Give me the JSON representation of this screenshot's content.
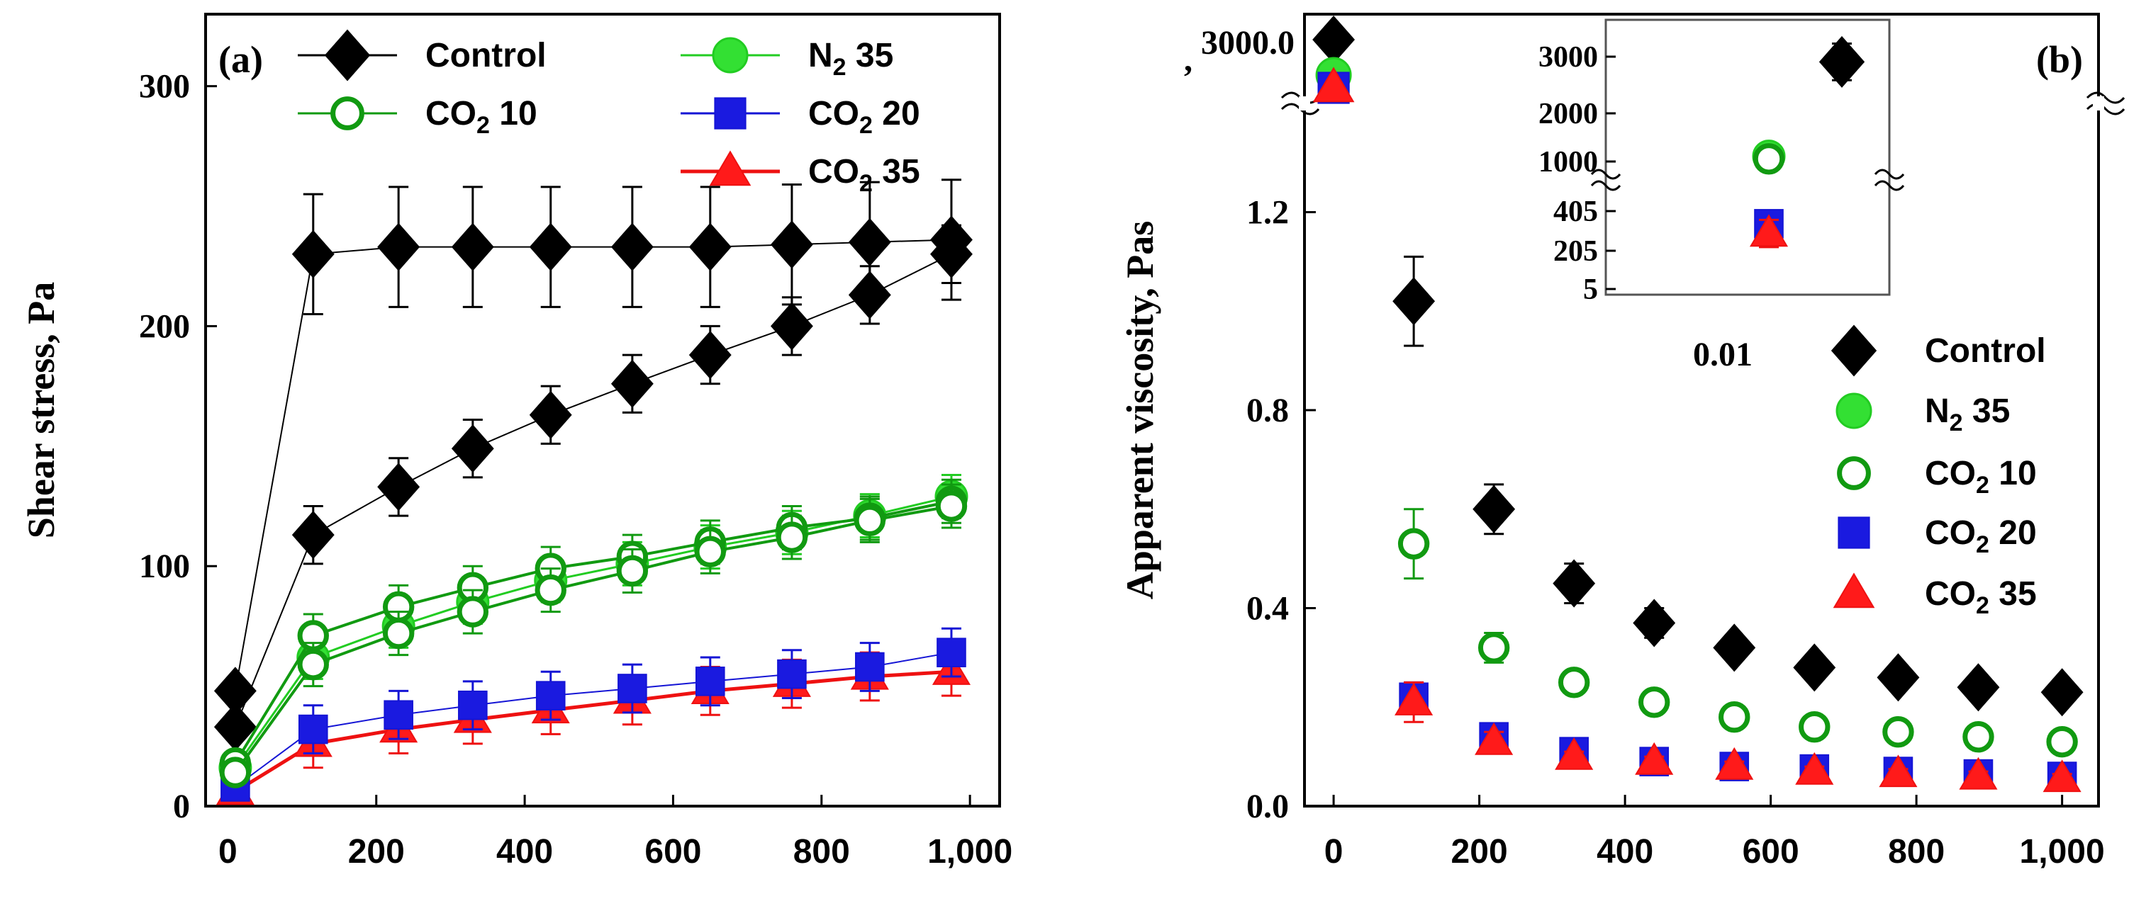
{
  "chart_data": [
    {
      "panel": "(a)",
      "type": "line",
      "xlabel": "",
      "ylabel": "Shear stress, Pa",
      "xlim": [
        -30,
        1040
      ],
      "ylim": [
        0,
        330
      ],
      "xticks": [
        0,
        200,
        400,
        600,
        800,
        1000
      ],
      "xtick_labels": [
        "0",
        "200",
        "400",
        "600",
        "800",
        "1,000"
      ],
      "yticks": [
        0,
        100,
        200,
        300
      ],
      "ytick_labels": [
        "0",
        "100",
        "200",
        "300"
      ],
      "grid": false,
      "legend": {
        "position": "top",
        "entries": [
          {
            "key": "control",
            "sym": "diamond",
            "color": "#000000",
            "fill": "#000000",
            "label": "Control"
          },
          {
            "key": "co2_10",
            "sym": "circle-open",
            "color": "#119a11",
            "fill": "#ffffff",
            "label": "CO",
            "sub": "2",
            "label_rest": " 10"
          },
          {
            "key": "n2_35",
            "sym": "circle",
            "color": "#22cc22",
            "fill": "#33e033",
            "label": "N",
            "sub": "2",
            "label_rest": " 35"
          },
          {
            "key": "co2_20",
            "sym": "square",
            "color": "#1515d5",
            "fill": "#1a1ae0",
            "label": "CO",
            "sub": "2",
            "label_rest": " 20"
          },
          {
            "key": "co2_35",
            "sym": "triangle",
            "color": "#ee1111",
            "fill": "#ff1a1a",
            "label": "CO",
            "sub": "2",
            "label_rest": " 35"
          }
        ]
      },
      "x": [
        10,
        115,
        230,
        330,
        435,
        545,
        650,
        760,
        865,
        975
      ],
      "series": [
        {
          "name": "Control (up)",
          "key": "control",
          "sym": "diamond",
          "color": "#000000",
          "fill": "#000000",
          "values": [
            48,
            230,
            233,
            233,
            233,
            233,
            233,
            234,
            235,
            236
          ],
          "err": 25
        },
        {
          "name": "Control (down)",
          "key": "control",
          "sym": "diamond",
          "color": "#000000",
          "fill": "#000000",
          "values": [
            33,
            113,
            133,
            149,
            163,
            176,
            188,
            200,
            213,
            230
          ],
          "err": 12
        },
        {
          "name": "CO2 10 (up)",
          "key": "co2_10",
          "sym": "circle-open",
          "color": "#119a11",
          "fill": "#ffffff",
          "values": [
            18,
            71,
            83,
            91,
            99,
            104,
            110,
            116,
            120,
            127
          ],
          "err": 9
        },
        {
          "name": "CO2 10 (down)",
          "key": "co2_10",
          "sym": "circle-open",
          "color": "#119a11",
          "fill": "#ffffff",
          "values": [
            14,
            59,
            72,
            81,
            90,
            98,
            106,
            112,
            119,
            125
          ],
          "err": 9
        },
        {
          "name": "N2 35",
          "key": "n2_35",
          "sym": "circle",
          "color": "#22cc22",
          "fill": "#33e033",
          "values": [
            16,
            62,
            75,
            85,
            94,
            101,
            108,
            114,
            121,
            129
          ],
          "err": 9
        },
        {
          "name": "CO2 20",
          "key": "co2_20",
          "sym": "square",
          "color": "#1515d5",
          "fill": "#1a1ae0",
          "values": [
            8,
            32,
            38,
            42,
            46,
            49,
            52,
            55,
            58,
            64
          ],
          "err": 10
        },
        {
          "name": "CO2 35",
          "key": "co2_35",
          "sym": "triangle",
          "color": "#ee1111",
          "fill": "#ff1a1a",
          "values": [
            6,
            26,
            32,
            36,
            40,
            44,
            48,
            51,
            54,
            56
          ],
          "err": 10
        }
      ]
    },
    {
      "panel": "(b)",
      "type": "scatter",
      "xlabel": "",
      "ylabel": "Apparent viscosity, Pas",
      "xlim": [
        -40,
        1050
      ],
      "ylim": [
        0,
        1.6
      ],
      "xticks": [
        0,
        200,
        400,
        600,
        800,
        1000
      ],
      "xtick_labels": [
        "0",
        "200",
        "400",
        "600",
        "800",
        "1,000"
      ],
      "yticks": [
        0.0,
        0.4,
        0.8,
        1.2
      ],
      "ytick_labels": [
        "0.0",
        "0.4",
        "0.8",
        "1.2"
      ],
      "top_break_label": "3000.0",
      "top_break_sublabel": ",",
      "grid": false,
      "legend": {
        "position": "center-right",
        "entries": [
          {
            "key": "control",
            "sym": "diamond",
            "color": "#000000",
            "fill": "#000000",
            "label": "Control"
          },
          {
            "key": "n2_35",
            "sym": "circle",
            "color": "#22cc22",
            "fill": "#33e033",
            "label": "N",
            "sub": "2",
            "label_rest": " 35"
          },
          {
            "key": "co2_10",
            "sym": "circle-open",
            "color": "#119a11",
            "fill": "#ffffff",
            "label": "CO",
            "sub": "2",
            "label_rest": " 10"
          },
          {
            "key": "co2_20",
            "sym": "square",
            "color": "#1515d5",
            "fill": "#1a1ae0",
            "label": "CO",
            "sub": "2",
            "label_rest": " 20"
          },
          {
            "key": "co2_35",
            "sym": "triangle",
            "color": "#ee1111",
            "fill": "#ff1a1a",
            "label": "CO",
            "sub": "2",
            "label_rest": " 35"
          }
        ]
      },
      "x": [
        110,
        220,
        330,
        440,
        550,
        660,
        775,
        885,
        1000
      ],
      "series": [
        {
          "name": "Control",
          "key": "control",
          "sym": "diamond",
          "color": "#000000",
          "fill": "#000000",
          "values": [
            1.02,
            0.6,
            0.45,
            0.37,
            0.32,
            0.28,
            0.26,
            0.24,
            0.23
          ],
          "err": [
            0.09,
            0.05,
            0.04,
            0.03,
            0.02,
            0.02,
            0.02,
            0.02,
            0.02
          ]
        },
        {
          "name": "CO2 10",
          "key": "co2_10",
          "sym": "circle-open",
          "color": "#119a11",
          "fill": "#ffffff",
          "values": [
            0.53,
            0.32,
            0.25,
            0.21,
            0.18,
            0.16,
            0.15,
            0.14,
            0.13
          ],
          "err": [
            0.07,
            0.03,
            0.02,
            0.02,
            0.02,
            0.02,
            0.01,
            0.01,
            0.01
          ]
        },
        {
          "name": "CO2 20",
          "key": "co2_20",
          "sym": "square",
          "color": "#1515d5",
          "fill": "#1a1ae0",
          "values": [
            0.22,
            0.14,
            0.11,
            0.09,
            0.08,
            0.075,
            0.07,
            0.065,
            0.06
          ],
          "err": [
            0.03,
            0.02,
            0.01,
            0.01,
            0.01,
            0.01,
            0.01,
            0.01,
            0.01
          ]
        },
        {
          "name": "CO2 35",
          "key": "co2_35",
          "sym": "triangle",
          "color": "#ee1111",
          "fill": "#ff1a1a",
          "values": [
            0.21,
            0.13,
            0.1,
            0.09,
            0.08,
            0.07,
            0.065,
            0.06,
            0.055
          ],
          "err": [
            0.04,
            0.02,
            0.01,
            0.01,
            0.01,
            0.01,
            0.01,
            0.01,
            0.01
          ]
        }
      ],
      "broken_axis_points": [
        {
          "key": "control",
          "sym": "diamond",
          "color": "#000000",
          "fill": "#000000",
          "x": 0,
          "y": 3000
        },
        {
          "key": "co2_10",
          "sym": "circle-open",
          "color": "#119a11",
          "fill": "#ffffff",
          "x": 0,
          "y": 1150
        },
        {
          "key": "n2_35",
          "sym": "circle",
          "color": "#22cc22",
          "fill": "#33e033",
          "x": 0,
          "y": 1100
        },
        {
          "key": "co2_20",
          "sym": "square",
          "color": "#1515d5",
          "fill": "#1a1ae0",
          "x": 0,
          "y": 310
        },
        {
          "key": "co2_35",
          "sym": "triangle",
          "color": "#ee1111",
          "fill": "#ff1a1a",
          "x": 0,
          "y": 280
        }
      ],
      "inset": {
        "x_label": "0.01",
        "yticks_upper": [
          "3000",
          "2000",
          "1000"
        ],
        "yticks_lower": [
          "405",
          "205",
          "5"
        ],
        "points": [
          {
            "key": "control",
            "sym": "diamond",
            "color": "#000000",
            "fill": "#000000",
            "pos": "right",
            "value": 2900,
            "err": 350
          },
          {
            "key": "n2_35",
            "sym": "circle",
            "color": "#22cc22",
            "fill": "#33e033",
            "pos": "left",
            "value": 1100,
            "err": 60
          },
          {
            "key": "co2_10",
            "sym": "circle-open",
            "color": "#119a11",
            "fill": "#ffffff",
            "pos": "left",
            "value": 1050,
            "err": 60
          },
          {
            "key": "co2_20",
            "sym": "square",
            "color": "#1515d5",
            "fill": "#1a1ae0",
            "pos": "left",
            "value": 340,
            "err": 60
          },
          {
            "key": "co2_35",
            "sym": "triangle",
            "color": "#ee1111",
            "fill": "#ff1a1a",
            "pos": "left",
            "value": 290,
            "err": 70
          }
        ]
      }
    }
  ]
}
